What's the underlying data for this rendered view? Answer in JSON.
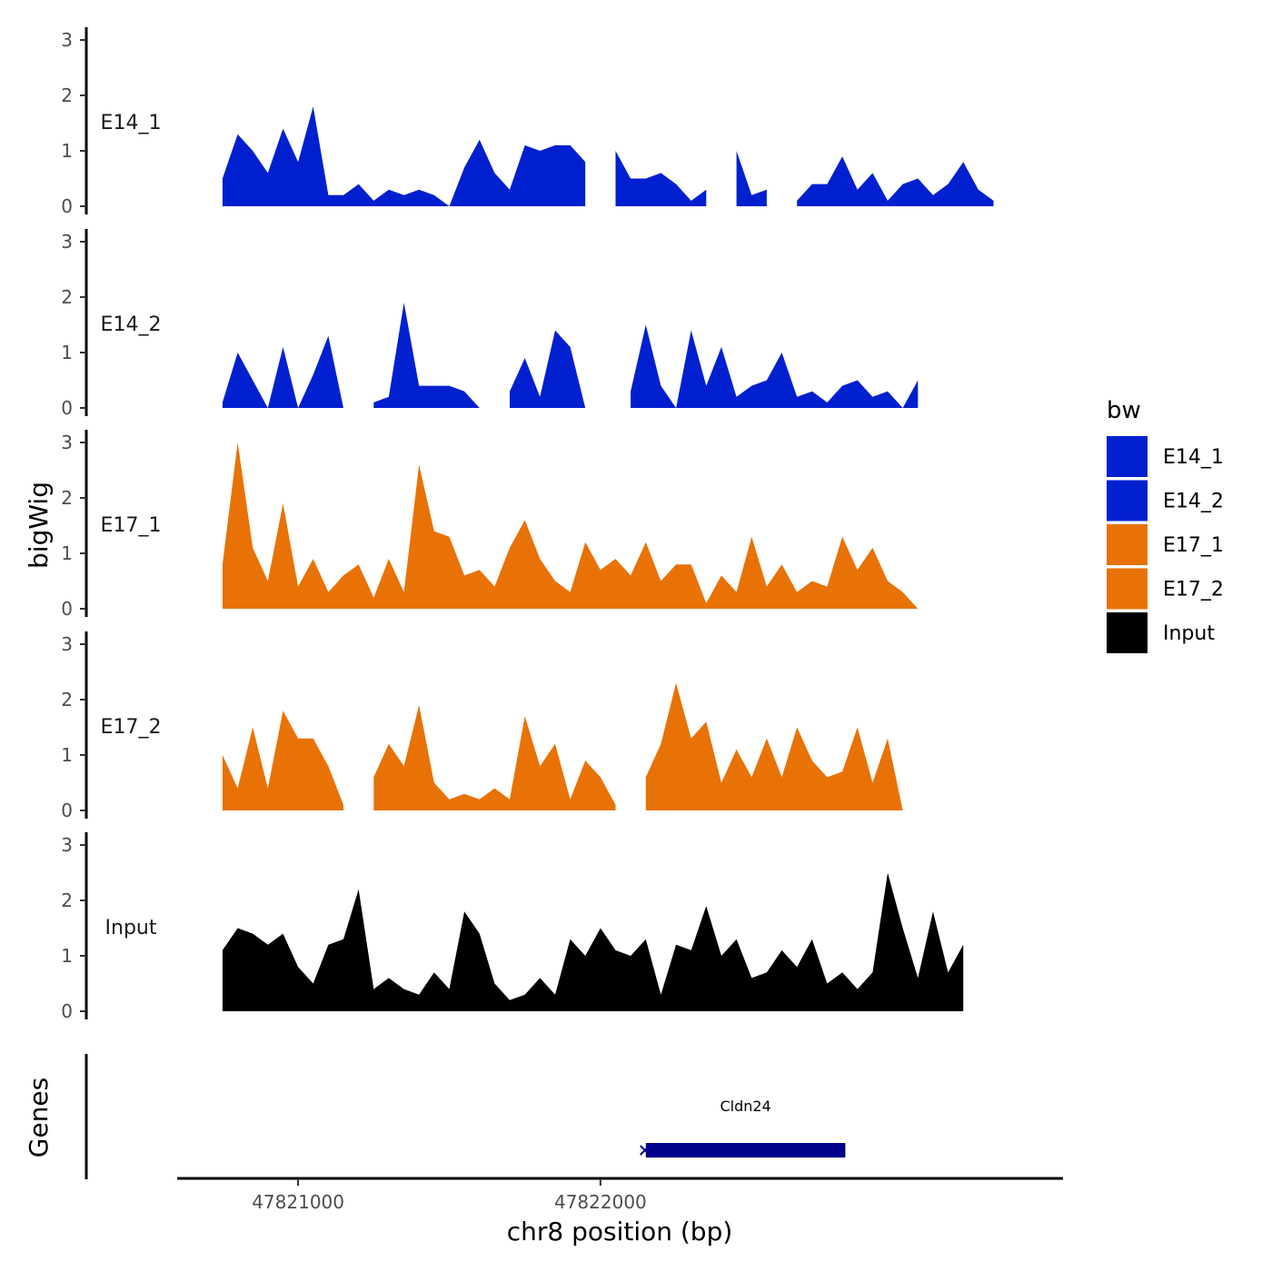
{
  "chart_data": {
    "type": "area",
    "title": "",
    "xlabel": "chr8 position (bp)",
    "ylabel": "bigWig",
    "genes_label": "Genes",
    "xlim": [
      47820600,
      47823530
    ],
    "ylim": [
      0,
      3.2
    ],
    "y_ticks": [
      0,
      1,
      2,
      3
    ],
    "x_ticks": [
      47821000,
      47822000
    ],
    "x_tick_labels": [
      "47821000",
      "47822000"
    ],
    "grid": false,
    "legend": {
      "title": "bw",
      "position": "right"
    },
    "x": [
      47820750,
      47820800,
      47820850,
      47820900,
      47820950,
      47821000,
      47821050,
      47821100,
      47821150,
      47821200,
      47821250,
      47821300,
      47821350,
      47821400,
      47821450,
      47821500,
      47821550,
      47821600,
      47821650,
      47821700,
      47821750,
      47821800,
      47821850,
      47821900,
      47821950,
      47822000,
      47822050,
      47822100,
      47822150,
      47822200,
      47822250,
      47822300,
      47822350,
      47822400,
      47822450,
      47822500,
      47822550,
      47822600,
      47822650,
      47822700,
      47822750,
      47822800,
      47822850,
      47822900,
      47822950,
      47823000,
      47823050,
      47823100,
      47823150,
      47823200,
      47823250,
      47823300,
      47823350,
      47823400
    ],
    "series": [
      {
        "name": "E14_1",
        "color": "#0020D0",
        "values": [
          0.5,
          1.3,
          1.0,
          0.6,
          1.4,
          0.8,
          1.8,
          0.2,
          0.2,
          0.4,
          0.1,
          0.3,
          0.2,
          0.3,
          0.2,
          0.0,
          0.7,
          1.2,
          0.6,
          0.3,
          1.1,
          1.0,
          1.1,
          1.1,
          0.8,
          null,
          1.0,
          0.5,
          0.5,
          0.6,
          0.4,
          0.1,
          0.3,
          null,
          1.0,
          0.2,
          0.3,
          null,
          0.1,
          0.4,
          0.4,
          0.9,
          0.3,
          0.6,
          0.1,
          0.4,
          0.5,
          0.2,
          0.4,
          0.8,
          0.3,
          0.1,
          null,
          null
        ],
        "label": "E14_1"
      },
      {
        "name": "E14_2",
        "color": "#0020D0",
        "values": [
          0.1,
          1.0,
          0.5,
          0.0,
          1.1,
          0.0,
          0.6,
          1.3,
          0.0,
          null,
          0.1,
          0.2,
          1.9,
          0.4,
          0.4,
          0.4,
          0.3,
          0.0,
          null,
          0.3,
          0.9,
          0.2,
          1.4,
          1.1,
          0.0,
          null,
          null,
          0.3,
          1.5,
          0.4,
          0.0,
          1.4,
          0.4,
          1.1,
          0.2,
          0.4,
          0.5,
          1.0,
          0.2,
          0.3,
          0.1,
          0.4,
          0.5,
          0.2,
          0.3,
          0.0,
          0.5,
          null,
          null,
          null,
          null,
          null,
          null,
          null
        ],
        "label": "E14_2"
      },
      {
        "name": "E17_1",
        "color": "#E87205",
        "values": [
          0.8,
          3.0,
          1.1,
          0.5,
          1.9,
          0.4,
          0.9,
          0.3,
          0.6,
          0.8,
          0.2,
          0.9,
          0.3,
          2.6,
          1.4,
          1.3,
          0.6,
          0.7,
          0.4,
          1.1,
          1.6,
          0.9,
          0.5,
          0.3,
          1.2,
          0.7,
          0.9,
          0.6,
          1.2,
          0.5,
          0.8,
          0.8,
          0.1,
          0.6,
          0.3,
          1.3,
          0.4,
          0.8,
          0.3,
          0.5,
          0.4,
          1.3,
          0.7,
          1.1,
          0.5,
          0.3,
          0.0,
          null,
          null,
          null,
          null,
          null,
          null,
          null
        ],
        "label": "E17_1"
      },
      {
        "name": "E17_2",
        "color": "#E87205",
        "values": [
          1.0,
          0.4,
          1.5,
          0.4,
          1.8,
          1.3,
          1.3,
          0.8,
          0.1,
          null,
          0.6,
          1.2,
          0.8,
          1.9,
          0.5,
          0.2,
          0.3,
          0.2,
          0.4,
          0.2,
          1.7,
          0.8,
          1.2,
          0.2,
          0.9,
          0.6,
          0.1,
          null,
          0.6,
          1.2,
          2.3,
          1.3,
          1.6,
          0.5,
          1.1,
          0.6,
          1.3,
          0.6,
          1.5,
          0.9,
          0.6,
          0.7,
          1.5,
          0.5,
          1.3,
          0.0,
          null,
          null,
          null,
          null,
          null,
          null,
          null,
          null
        ],
        "label": "E17_2"
      },
      {
        "name": "Input",
        "color": "#000000",
        "values": [
          1.1,
          1.5,
          1.4,
          1.2,
          1.4,
          0.8,
          0.5,
          1.2,
          1.3,
          2.2,
          0.4,
          0.6,
          0.4,
          0.3,
          0.7,
          0.4,
          1.8,
          1.4,
          0.5,
          0.2,
          0.3,
          0.6,
          0.3,
          1.3,
          1.0,
          1.5,
          1.1,
          1.0,
          1.3,
          0.3,
          1.2,
          1.1,
          1.9,
          1.0,
          1.3,
          0.6,
          0.7,
          1.1,
          0.8,
          1.3,
          0.5,
          0.7,
          0.4,
          0.7,
          2.5,
          1.5,
          0.6,
          1.8,
          0.7,
          1.2,
          null,
          null,
          null,
          null
        ],
        "label": "Input"
      }
    ],
    "genes": [
      {
        "name": "Cldn24",
        "start": 47822150,
        "end": 47822810,
        "strand": "+",
        "color": "#00008B"
      }
    ]
  }
}
